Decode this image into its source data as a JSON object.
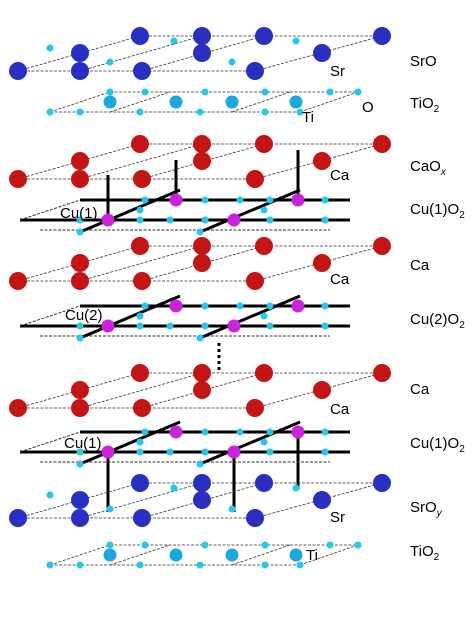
{
  "colors": {
    "sr": "#2a2fc4",
    "ca": "#c41414",
    "o": "#22c8ee",
    "ti": "#1aa8e0",
    "cu": "#cc22dd",
    "bond": "#000000",
    "thin": "#333333"
  },
  "layers": [
    {
      "id": "sro-top",
      "kind": "big",
      "color": "sr",
      "atom_label": "Sr",
      "label": "SrO",
      "sub": ""
    },
    {
      "id": "tio2-top",
      "kind": "ti",
      "color": "ti",
      "atom_label": "Ti",
      "label": "TiO",
      "sub": "2",
      "o_label": "O"
    },
    {
      "id": "caox",
      "kind": "big",
      "color": "ca",
      "atom_label": "Ca",
      "label": "CaO",
      "sub": "x",
      "sub_italic": true
    },
    {
      "id": "cu1o2-a",
      "kind": "cu",
      "color": "cu",
      "atom_label": "Cu(1)",
      "label": "Cu(1)O",
      "sub": "2"
    },
    {
      "id": "ca-1",
      "kind": "big",
      "color": "ca",
      "atom_label": "Ca",
      "label": "Ca",
      "sub": ""
    },
    {
      "id": "cu2o2",
      "kind": "cu",
      "color": "cu",
      "atom_label": "Cu(2)",
      "label": "Cu(2)O",
      "sub": "2"
    },
    {
      "id": "ca-2",
      "kind": "big",
      "color": "ca",
      "atom_label": "Ca",
      "label": "Ca",
      "sub": ""
    },
    {
      "id": "cu1o2-b",
      "kind": "cu",
      "color": "cu",
      "atom_label": "Cu(1)",
      "label": "Cu(1)O",
      "sub": "2"
    },
    {
      "id": "sroy",
      "kind": "big",
      "color": "sr",
      "atom_label": "Sr",
      "label": "SrO",
      "sub": "y",
      "sub_italic": true
    },
    {
      "id": "tio2-bot",
      "kind": "ti",
      "color": "ti",
      "atom_label": "Ti",
      "label": "TiO",
      "sub": "2"
    }
  ]
}
